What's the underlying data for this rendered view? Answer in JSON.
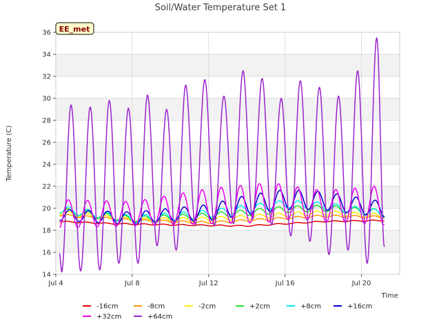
{
  "chart_data": {
    "type": "line",
    "title": "Soil/Water Temperature Set 1",
    "xlabel": "Time",
    "ylabel": "Temperature (C)",
    "badge": "EE_met",
    "x_ticks": [
      "Jul 4",
      "Jul 8",
      "Jul 12",
      "Jul 16",
      "Jul 20"
    ],
    "y_ticks": [
      14,
      16,
      18,
      20,
      22,
      24,
      26,
      28,
      30,
      32,
      34,
      36
    ],
    "xlim_days": [
      4,
      22.0
    ],
    "ylim": [
      14,
      36
    ],
    "grid": true,
    "banded_background": true,
    "legend_placement": "bottom",
    "series": [
      {
        "name": "-16cm",
        "color": "#dd0000",
        "baseline": [
          [
            4.2,
            18.8
          ],
          [
            7,
            18.6
          ],
          [
            10,
            18.5
          ],
          [
            14,
            18.4
          ],
          [
            16,
            18.6
          ],
          [
            18,
            18.8
          ],
          [
            21.2,
            18.9
          ]
        ],
        "amplitude": [
          [
            4.2,
            0.05
          ],
          [
            21.2,
            0.05
          ]
        ],
        "peak_phase": 0.6
      },
      {
        "name": "-8cm",
        "color": "#ff9900",
        "baseline": [
          [
            4.2,
            19.4
          ],
          [
            8,
            18.9
          ],
          [
            12,
            18.7
          ],
          [
            16,
            19.1
          ],
          [
            18,
            19.3
          ],
          [
            21.2,
            19.2
          ]
        ],
        "amplitude": [
          [
            4.2,
            0.1
          ],
          [
            21.2,
            0.1
          ]
        ],
        "peak_phase": 0.65
      },
      {
        "name": "-2cm",
        "color": "#ffee00",
        "baseline": [
          [
            4.2,
            19.6
          ],
          [
            8,
            18.9
          ],
          [
            12,
            19.0
          ],
          [
            16,
            19.4
          ],
          [
            18,
            19.6
          ],
          [
            21.2,
            19.3
          ]
        ],
        "amplitude": [
          [
            4.2,
            0.2
          ],
          [
            21.2,
            0.2
          ]
        ],
        "peak_phase": 0.65
      },
      {
        "name": "+2cm",
        "color": "#22dd22",
        "baseline": [
          [
            4.2,
            19.8
          ],
          [
            8,
            19.0
          ],
          [
            12,
            19.3
          ],
          [
            16,
            19.9
          ],
          [
            18,
            20.0
          ],
          [
            21.2,
            19.6
          ]
        ],
        "amplitude": [
          [
            4.2,
            0.25
          ],
          [
            21.2,
            0.3
          ]
        ],
        "peak_phase": 0.65
      },
      {
        "name": "+8cm",
        "color": "#00eeee",
        "baseline": [
          [
            4.2,
            19.9
          ],
          [
            8,
            19.0
          ],
          [
            12,
            19.5
          ],
          [
            16,
            20.4
          ],
          [
            18,
            20.2
          ],
          [
            21.2,
            19.5
          ]
        ],
        "amplitude": [
          [
            4.2,
            0.35
          ],
          [
            21.2,
            0.35
          ]
        ],
        "peak_phase": 0.68
      },
      {
        "name": "+16cm",
        "color": "#0000cc",
        "baseline": [
          [
            4.2,
            19.4
          ],
          [
            8,
            19.1
          ],
          [
            10,
            19.4
          ],
          [
            12,
            19.6
          ],
          [
            14,
            20.3
          ],
          [
            16,
            20.8
          ],
          [
            18,
            20.7
          ],
          [
            21.2,
            19.9
          ]
        ],
        "amplitude": [
          [
            4.2,
            0.5
          ],
          [
            10,
            0.6
          ],
          [
            14,
            0.9
          ],
          [
            16,
            0.9
          ],
          [
            21.2,
            0.7
          ]
        ],
        "peak_phase": 0.72
      },
      {
        "name": "+32cm",
        "color": "#ee00ee",
        "baseline": [
          [
            4.2,
            19.5
          ],
          [
            8,
            19.5
          ],
          [
            12,
            20.2
          ],
          [
            16,
            20.6
          ],
          [
            18,
            20.2
          ],
          [
            21.2,
            20.3
          ]
        ],
        "amplitude": [
          [
            4.2,
            1.3
          ],
          [
            8,
            1.1
          ],
          [
            12,
            1.6
          ],
          [
            15,
            1.8
          ],
          [
            17,
            1.4
          ],
          [
            19,
            1.5
          ],
          [
            21.2,
            1.8
          ]
        ],
        "peak_phase": 0.66
      },
      {
        "name": "+64cm",
        "color": "#9922cc",
        "minima": [
          [
            4.3,
            14.2
          ],
          [
            5.3,
            14.3
          ],
          [
            6.3,
            14.4
          ],
          [
            7.3,
            15.0
          ],
          [
            8.3,
            15.0
          ],
          [
            9.3,
            16.6
          ],
          [
            10.3,
            16.2
          ],
          [
            11.3,
            18.5
          ],
          [
            12.3,
            18.4
          ],
          [
            13.3,
            18.6
          ],
          [
            14.3,
            19.0
          ],
          [
            15.3,
            18.5
          ],
          [
            16.3,
            17.5
          ],
          [
            17.3,
            17.0
          ],
          [
            18.3,
            15.8
          ],
          [
            19.3,
            16.2
          ],
          [
            20.3,
            15.0
          ],
          [
            21.2,
            16.5
          ]
        ],
        "maxima": [
          [
            4.8,
            29.4
          ],
          [
            5.8,
            29.2
          ],
          [
            6.8,
            29.8
          ],
          [
            7.8,
            29.1
          ],
          [
            8.8,
            30.3
          ],
          [
            9.8,
            29.0
          ],
          [
            10.8,
            31.2
          ],
          [
            11.8,
            31.7
          ],
          [
            12.8,
            30.2
          ],
          [
            13.8,
            32.5
          ],
          [
            14.8,
            31.8
          ],
          [
            15.8,
            30.0
          ],
          [
            16.8,
            31.6
          ],
          [
            17.8,
            31.0
          ],
          [
            18.8,
            30.2
          ],
          [
            19.8,
            32.5
          ],
          [
            20.8,
            35.5
          ]
        ]
      }
    ]
  }
}
